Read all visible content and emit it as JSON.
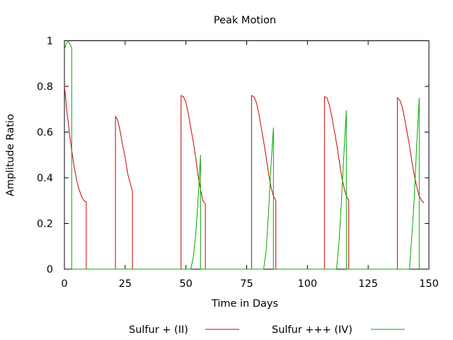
{
  "chart_data": {
    "type": "line",
    "title": "Peak Motion",
    "xlabel": "Time in Days",
    "ylabel": "Amplitude Ratio",
    "xlim": [
      0,
      150
    ],
    "ylim": [
      0,
      1
    ],
    "x_ticks": [
      "0",
      "25",
      "50",
      "75",
      "100",
      "125",
      "150"
    ],
    "y_ticks": [
      "0",
      "0.2",
      "0.4",
      "0.6",
      "0.8",
      "1"
    ],
    "grid": false,
    "legend_position": "bottom",
    "series": [
      {
        "name": "Sulfur + (II)",
        "color": "#cc0000",
        "points": [
          [
            0,
            0.8
          ],
          [
            0.5,
            0.75
          ],
          [
            1,
            0.69
          ],
          [
            1.5,
            0.65
          ],
          [
            2,
            0.6
          ],
          [
            2.5,
            0.56
          ],
          [
            3,
            0.52
          ],
          [
            4,
            0.45
          ],
          [
            5,
            0.39
          ],
          [
            6,
            0.35
          ],
          [
            7,
            0.32
          ],
          [
            8,
            0.3
          ],
          [
            9,
            0.295
          ],
          [
            9,
            0
          ],
          [
            21,
            0
          ],
          [
            21,
            0.67
          ],
          [
            22,
            0.65
          ],
          [
            23,
            0.6
          ],
          [
            24,
            0.54
          ],
          [
            25,
            0.49
          ],
          [
            26,
            0.42
          ],
          [
            27,
            0.38
          ],
          [
            28,
            0.34
          ],
          [
            28,
            0
          ],
          [
            48,
            0
          ],
          [
            48,
            0.76
          ],
          [
            49,
            0.755
          ],
          [
            50,
            0.73
          ],
          [
            51,
            0.68
          ],
          [
            52,
            0.62
          ],
          [
            53,
            0.56
          ],
          [
            54,
            0.49
          ],
          [
            55,
            0.41
          ],
          [
            56,
            0.35
          ],
          [
            57,
            0.3
          ],
          [
            58,
            0.285
          ],
          [
            58,
            0
          ],
          [
            77,
            0
          ],
          [
            77,
            0.76
          ],
          [
            78,
            0.755
          ],
          [
            79,
            0.73
          ],
          [
            80,
            0.68
          ],
          [
            81,
            0.62
          ],
          [
            82,
            0.56
          ],
          [
            83,
            0.49
          ],
          [
            84,
            0.42
          ],
          [
            85,
            0.36
          ],
          [
            86,
            0.32
          ],
          [
            87,
            0.3
          ],
          [
            87,
            0
          ],
          [
            107,
            0
          ],
          [
            107,
            0.755
          ],
          [
            108,
            0.75
          ],
          [
            109,
            0.72
          ],
          [
            110,
            0.67
          ],
          [
            111,
            0.61
          ],
          [
            112,
            0.55
          ],
          [
            113,
            0.48
          ],
          [
            114,
            0.41
          ],
          [
            115,
            0.36
          ],
          [
            116,
            0.32
          ],
          [
            117,
            0.3
          ],
          [
            117,
            0
          ],
          [
            137,
            0
          ],
          [
            137,
            0.75
          ],
          [
            138,
            0.74
          ],
          [
            139,
            0.71
          ],
          [
            140,
            0.66
          ],
          [
            141,
            0.6
          ],
          [
            142,
            0.54
          ],
          [
            143,
            0.47
          ],
          [
            144,
            0.41
          ],
          [
            145,
            0.36
          ],
          [
            146,
            0.32
          ],
          [
            147,
            0.3
          ],
          [
            148,
            0.29
          ]
        ]
      },
      {
        "name": "Sulfur +++ (IV)",
        "color": "#00aa00",
        "points": [
          [
            0,
            0.96
          ],
          [
            0.5,
            0.98
          ],
          [
            1,
            0.99
          ],
          [
            1.5,
            1.0
          ],
          [
            2,
            0.99
          ],
          [
            3,
            0.97
          ],
          [
            3,
            0
          ],
          [
            52,
            0
          ],
          [
            53,
            0.05
          ],
          [
            54,
            0.15
          ],
          [
            55,
            0.3
          ],
          [
            56,
            0.5
          ],
          [
            56,
            0
          ],
          [
            82,
            0
          ],
          [
            83,
            0.08
          ],
          [
            84,
            0.25
          ],
          [
            85,
            0.45
          ],
          [
            86,
            0.62
          ],
          [
            86,
            0
          ],
          [
            112,
            0
          ],
          [
            113,
            0.12
          ],
          [
            114,
            0.3
          ],
          [
            115,
            0.5
          ],
          [
            116,
            0.695
          ],
          [
            116,
            0
          ],
          [
            142,
            0
          ],
          [
            143,
            0.15
          ],
          [
            144,
            0.32
          ],
          [
            145,
            0.55
          ],
          [
            146,
            0.75
          ],
          [
            146,
            0
          ]
        ]
      }
    ]
  }
}
